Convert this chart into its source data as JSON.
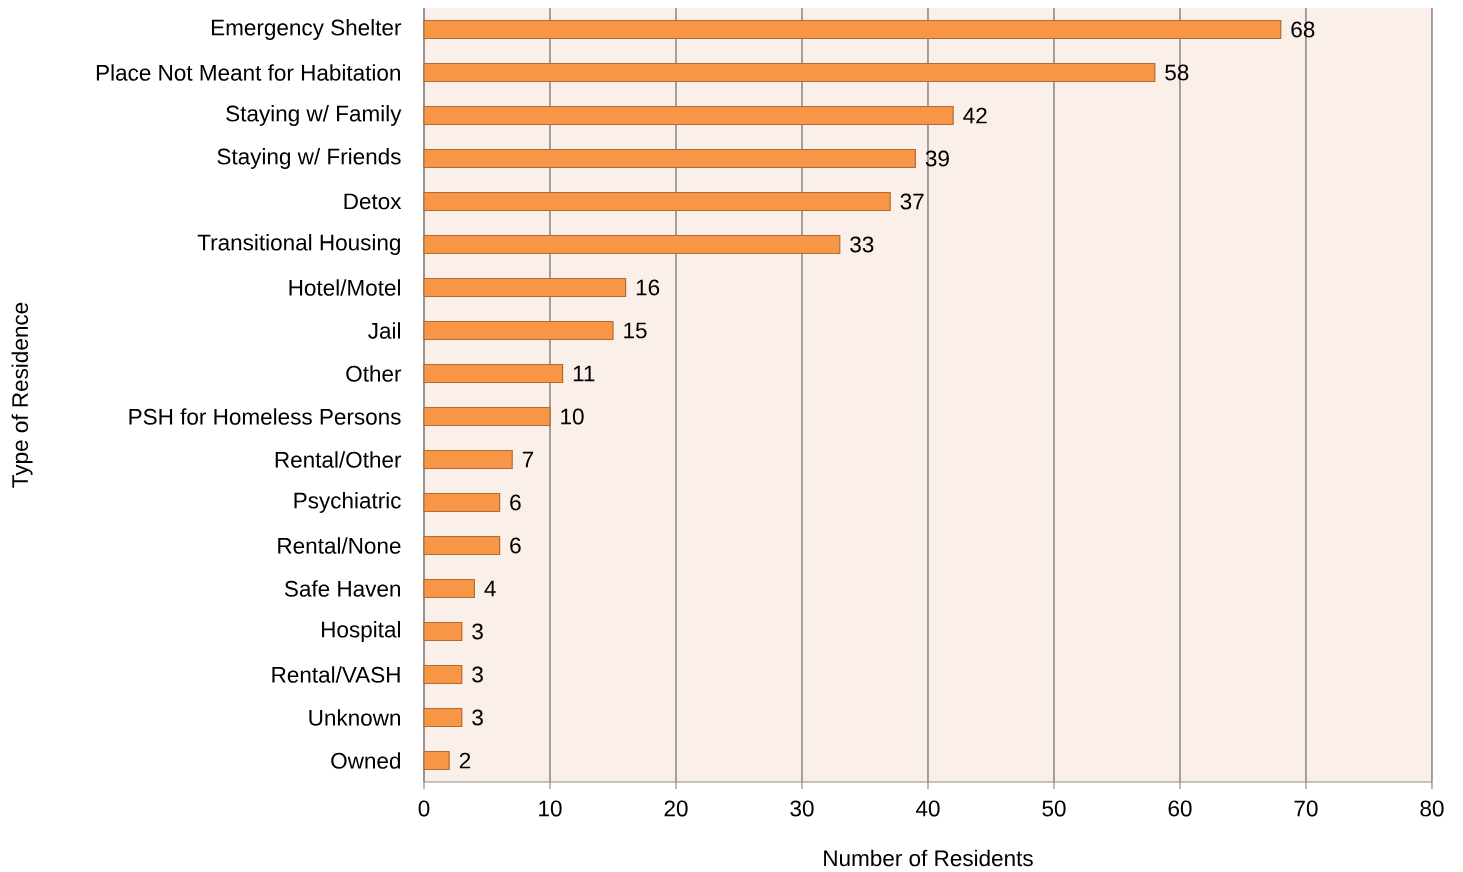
{
  "chart_data": {
    "type": "bar",
    "orientation": "horizontal",
    "xlabel": "Number of Residents",
    "ylabel": "Type of Residence",
    "categories": [
      "Emergency Shelter",
      "Place Not Meant for Habitation",
      "Staying w/ Family",
      "Staying w/ Friends",
      "Detox",
      "Transitional Housing",
      "Hotel/Motel",
      "Jail",
      "Other",
      "PSH for Homeless Persons",
      "Rental/Other",
      "Psychiatric",
      "Rental/None",
      "Safe Haven",
      "Hospital",
      "Rental/VASH",
      "Unknown",
      "Owned"
    ],
    "values": [
      68,
      58,
      42,
      39,
      37,
      33,
      16,
      15,
      11,
      10,
      7,
      6,
      6,
      4,
      3,
      3,
      3,
      2
    ],
    "color": "#f79646",
    "xlim": [
      0,
      80
    ],
    "xticks": [
      0,
      10,
      20,
      30,
      40,
      50,
      60,
      70,
      80
    ],
    "grid": "x",
    "data_labels": true
  }
}
